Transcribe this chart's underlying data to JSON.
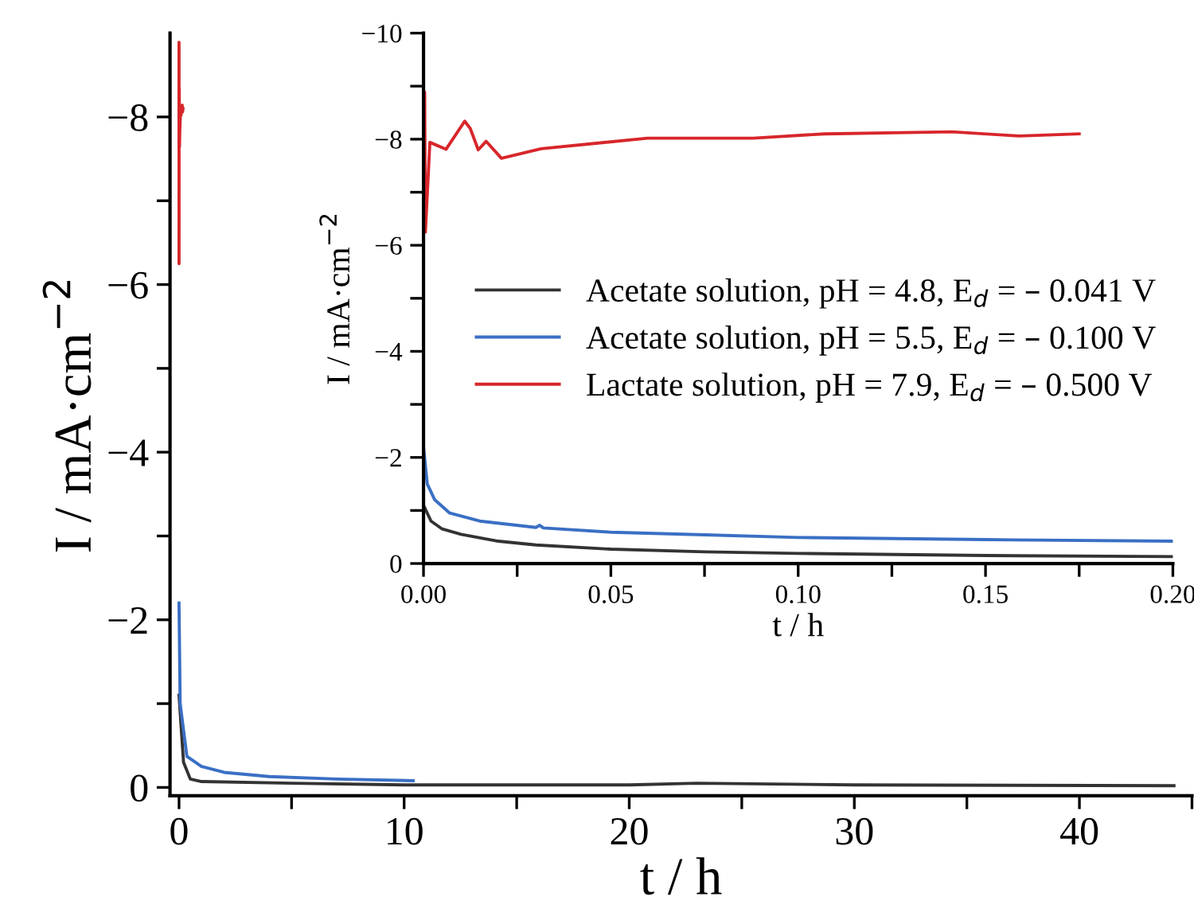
{
  "chart_data": [
    {
      "type": "line",
      "xlabel": "t / h",
      "ylabel": "I / mA·cm$^{−2}$",
      "xlim": [
        -0.4,
        45
      ],
      "ylim": [
        0.1,
        -9
      ],
      "xticks": [
        0,
        {
          "value": 5,
          "label": null
        },
        10,
        {
          "value": 15,
          "label": null
        },
        20,
        {
          "value": 25,
          "label": null
        },
        30,
        {
          "value": 35,
          "label": null
        },
        40,
        {
          "value": 45,
          "label": null
        }
      ],
      "yticks": [
        {
          "value": 0,
          "label": "0"
        },
        {
          "value": -1,
          "label": null
        },
        {
          "value": -2,
          "label": "−2"
        },
        {
          "value": -3,
          "label": null
        },
        {
          "value": -4,
          "label": "−4"
        },
        {
          "value": -5,
          "label": null
        },
        {
          "value": -6,
          "label": "−6"
        },
        {
          "value": -7,
          "label": null
        },
        {
          "value": -8,
          "label": "−8"
        }
      ],
      "grid": false,
      "legend": false,
      "series": [
        {
          "color": "#333333",
          "x": [
            0,
            0.2,
            0.5,
            1,
            5,
            10,
            20,
            23,
            30,
            44.2
          ],
          "values": [
            -1.1,
            -0.3,
            -0.1,
            -0.07,
            -0.05,
            -0.03,
            -0.03,
            -0.05,
            -0.03,
            -0.02
          ]
        },
        {
          "color": "#3a6fc4",
          "x": [
            0,
            0.05,
            0.35,
            1,
            2,
            4,
            7,
            10.4
          ],
          "values": [
            -2.2,
            -1.0,
            -0.37,
            -0.25,
            -0.18,
            -0.13,
            -0.1,
            -0.08
          ]
        },
        {
          "color": "#d7262b",
          "x": [
            0,
            0.0003,
            0.0005,
            0.0017,
            0.006,
            0.011,
            0.0125,
            0.0146,
            0.0167,
            0.0208,
            0.0314,
            0.0456,
            0.0598,
            0.088,
            0.107,
            0.141,
            0.159,
            0.175
          ],
          "values": [
            -8.0,
            -8.89,
            -6.25,
            -7.94,
            -7.81,
            -8.34,
            -8.2,
            -7.8,
            -7.96,
            -7.64,
            -7.82,
            -7.92,
            -8.02,
            -8.02,
            -8.1,
            -8.14,
            -8.06,
            -8.1
          ]
        }
      ]
    },
    {
      "type": "line",
      "xlabel": "t / h",
      "ylabel": "I / mA·cm$^{−2}$",
      "xlim": [
        0,
        0.2
      ],
      "ylim": [
        0,
        -10
      ],
      "xticks": [
        {
          "value": 0,
          "label": "0.00"
        },
        {
          "value": 0.025,
          "label": null
        },
        {
          "value": 0.05,
          "label": "0.05"
        },
        {
          "value": 0.075,
          "label": null
        },
        {
          "value": 0.1,
          "label": "0.10"
        },
        {
          "value": 0.125,
          "label": null
        },
        {
          "value": 0.15,
          "label": "0.15"
        },
        {
          "value": 0.175,
          "label": null
        },
        {
          "value": 0.2,
          "label": "0.20"
        }
      ],
      "yticks": [
        {
          "value": 0,
          "label": "0"
        },
        {
          "value": -1,
          "label": null
        },
        {
          "value": -2,
          "label": "−2"
        },
        {
          "value": -3,
          "label": null
        },
        {
          "value": -4,
          "label": "−4"
        },
        {
          "value": -5,
          "label": null
        },
        {
          "value": -6,
          "label": "−6"
        },
        {
          "value": -7,
          "label": null
        },
        {
          "value": -8,
          "label": "−8"
        },
        {
          "value": -9,
          "label": null
        },
        {
          "value": -10,
          "label": "−10"
        }
      ],
      "grid": false,
      "legend": "right",
      "series": [
        {
          "name": "Acetate solution, pH = 4.8, E$_{d}$ = – 0.041 V",
          "color": "#333333",
          "x": [
            0,
            0.002,
            0.005,
            0.01,
            0.02,
            0.03,
            0.05,
            0.075,
            0.1,
            0.15,
            0.2
          ],
          "values": [
            -1.1,
            -0.8,
            -0.65,
            -0.55,
            -0.42,
            -0.35,
            -0.27,
            -0.22,
            -0.19,
            -0.15,
            -0.13
          ]
        },
        {
          "name": "Acetate solution, pH = 5.5, E$_{d}$ = – 0.100 V",
          "color": "#3a6fc4",
          "x": [
            0,
            0.001,
            0.003,
            0.007,
            0.015,
            0.03,
            0.031,
            0.032,
            0.05,
            0.075,
            0.1,
            0.15,
            0.2
          ],
          "values": [
            -2.2,
            -1.5,
            -1.2,
            -0.95,
            -0.8,
            -0.68,
            -0.72,
            -0.67,
            -0.59,
            -0.54,
            -0.49,
            -0.45,
            -0.42
          ]
        },
        {
          "name": "Lactate solution, pH = 7.9, E$_{d}$ = – 0.500 V",
          "color": "#d7262b",
          "x": [
            0,
            0.0003,
            0.0005,
            0.0017,
            0.006,
            0.011,
            0.0125,
            0.0146,
            0.0167,
            0.0208,
            0.0314,
            0.0456,
            0.0598,
            0.088,
            0.107,
            0.141,
            0.159,
            0.175
          ],
          "values": [
            -8.0,
            -8.89,
            -6.25,
            -7.94,
            -7.81,
            -8.34,
            -8.2,
            -7.8,
            -7.96,
            -7.64,
            -7.82,
            -7.92,
            -8.02,
            -8.02,
            -8.1,
            -8.14,
            -8.06,
            -8.1
          ]
        }
      ]
    }
  ]
}
